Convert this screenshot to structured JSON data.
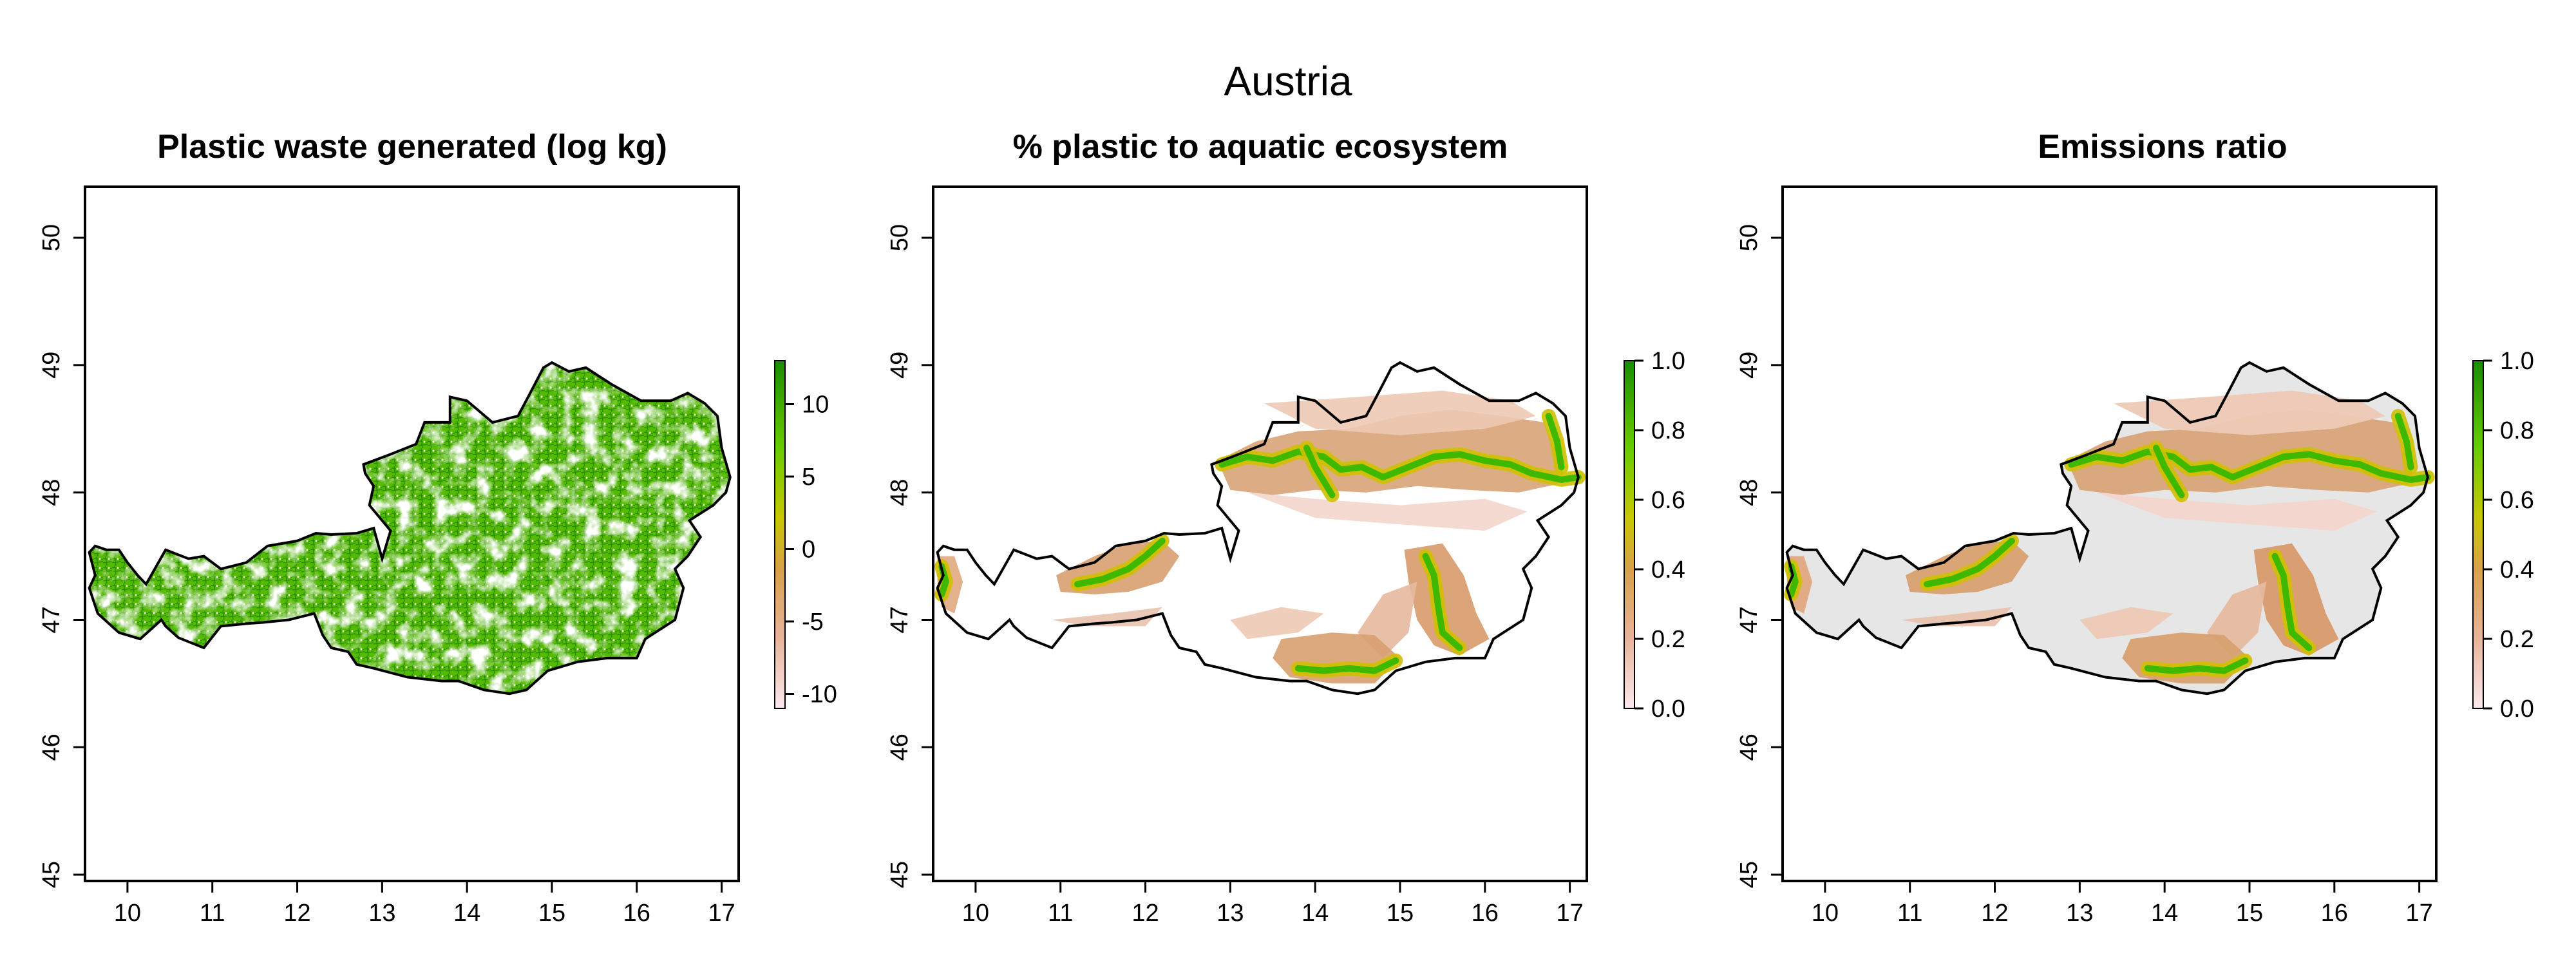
{
  "figure_title": "Austria",
  "panels": [
    {
      "title": "Plastic waste generated (log kg)",
      "colorbar": {
        "ticks": [
          "10",
          "5",
          "0",
          "-5",
          "-10"
        ],
        "values": [
          10,
          5,
          0,
          -5,
          -10
        ],
        "range": [
          -11,
          13
        ]
      },
      "colors": [
        "#fbe9ee",
        "#e8b49a",
        "#d9a04a",
        "#c8c800",
        "#66cc00",
        "#1a8c00"
      ]
    },
    {
      "title": "% plastic to aquatic ecosystem",
      "colorbar": {
        "ticks": [
          "1.0",
          "0.8",
          "0.6",
          "0.4",
          "0.2",
          "0.0"
        ],
        "values": [
          1.0,
          0.8,
          0.6,
          0.4,
          0.2,
          0.0
        ],
        "range": [
          0,
          1
        ]
      },
      "colors": [
        "#fbe9ee",
        "#e8b49a",
        "#d9a04a",
        "#c8c800",
        "#66cc00",
        "#1a8c00"
      ]
    },
    {
      "title": "Emissions ratio",
      "colorbar": {
        "ticks": [
          "1.0",
          "0.8",
          "0.6",
          "0.4",
          "0.2",
          "0.0"
        ],
        "values": [
          1.0,
          0.8,
          0.6,
          0.4,
          0.2,
          0.0
        ],
        "range": [
          0,
          1
        ]
      },
      "colors": [
        "#fbe9ee",
        "#e8b49a",
        "#d9a04a",
        "#c8c800",
        "#66cc00",
        "#1a8c00"
      ]
    }
  ],
  "axes": {
    "x_ticks": [
      "10",
      "11",
      "12",
      "13",
      "14",
      "15",
      "16",
      "17"
    ],
    "x_values": [
      10,
      11,
      12,
      13,
      14,
      15,
      16,
      17
    ],
    "y_ticks": [
      "45",
      "46",
      "47",
      "48",
      "49",
      "50"
    ],
    "y_values": [
      45,
      46,
      47,
      48,
      49,
      50
    ],
    "xlim": [
      9.5,
      17.2
    ],
    "ylim": [
      44.95,
      50.4
    ]
  }
}
